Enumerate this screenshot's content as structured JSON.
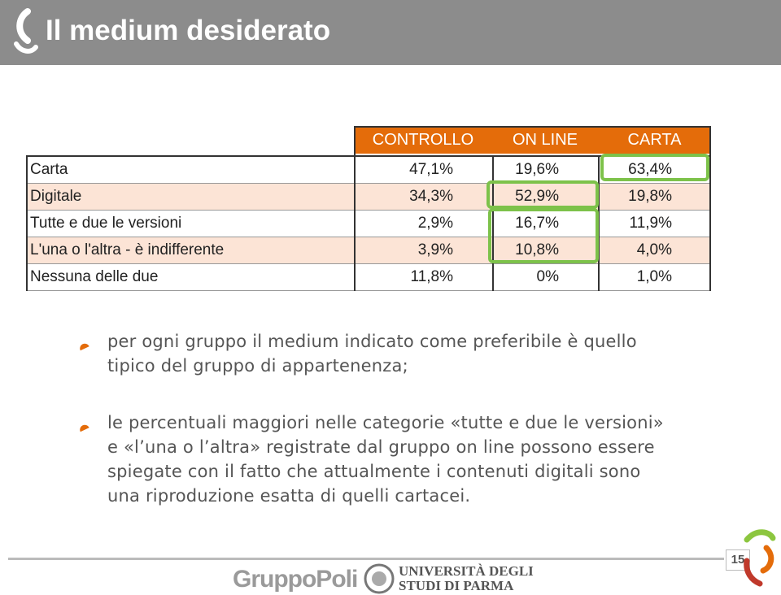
{
  "header": {
    "title": "Il medium desiderato"
  },
  "table": {
    "columns": [
      "CONTROLLO",
      "ON LINE",
      "CARTA"
    ],
    "rows": [
      [
        "Carta",
        "47,1%",
        "19,6%",
        "63,4%"
      ],
      [
        "Digitale",
        "34,3%",
        "52,9%",
        "19,8%"
      ],
      [
        "Tutte e due le versioni",
        "2,9%",
        "16,7%",
        "11,9%"
      ],
      [
        "L'una o l'altra - è indifferente",
        "3,9%",
        "10,8%",
        "4,0%"
      ],
      [
        "Nessuna delle due",
        "11,8%",
        "0%",
        "1,0%"
      ]
    ]
  },
  "bullets": [
    [
      "per ogni gruppo il medium indicato come preferibile è quello",
      "tipico del gruppo di appartenenza;"
    ],
    [
      "le percentuali maggiori nelle categorie «tutte e due le versioni»",
      "e «l’una o l’altra» registrate dal gruppo on line possono essere",
      "spiegate con il fatto che attualmente i contenuti digitali sono",
      "una riproduzione esatta di quelli cartacei."
    ]
  ],
  "footer": {
    "page_number": "15",
    "logo": "GruppoPoli",
    "university": [
      "UNIVERSITÀ DEGLI",
      "STUDI DI PARMA"
    ]
  }
}
